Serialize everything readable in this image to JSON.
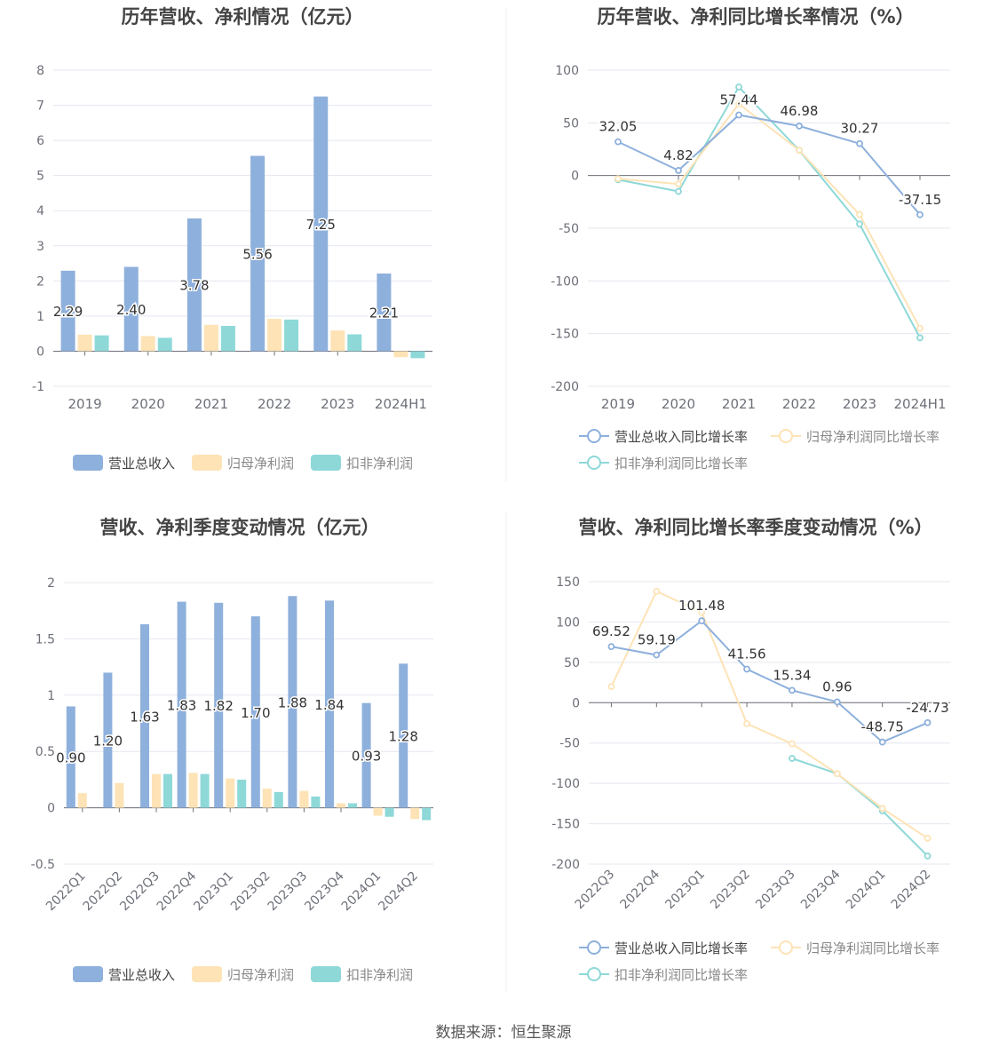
{
  "source_text": "数据来源：恒生聚源",
  "colors": {
    "revenue": "#8eb0dc",
    "net_profit": "#fde3b6",
    "deducted_profit": "#8ed8d8",
    "axis": "#6e7079",
    "grid": "#e4e7ef",
    "title": "#444444"
  },
  "chart_data": [
    {
      "type": "bar",
      "title": "历年营收、净利情况（亿元）",
      "categories": [
        "2019",
        "2020",
        "2021",
        "2022",
        "2023",
        "2024H1"
      ],
      "ylim": [
        -1,
        8
      ],
      "yticks": [
        -1,
        0,
        1,
        2,
        3,
        4,
        5,
        6,
        7,
        8
      ],
      "ytick_labels": [
        "-1",
        "0",
        "1",
        "2",
        "3",
        "4",
        "5",
        "6",
        "7",
        "8"
      ],
      "legend_position": "bottom",
      "grid": true,
      "series": [
        {
          "name": "营业总收入",
          "values": [
            2.29,
            2.4,
            3.78,
            5.56,
            7.25,
            2.21
          ],
          "labels": [
            "2.29",
            "2.40",
            "3.78",
            "5.56",
            "7.25",
            "2.21"
          ]
        },
        {
          "name": "归母净利润",
          "values": [
            0.47,
            0.43,
            0.75,
            0.92,
            0.59,
            -0.17
          ]
        },
        {
          "name": "扣非净利润",
          "values": [
            0.45,
            0.38,
            0.72,
            0.9,
            0.48,
            -0.2
          ]
        }
      ]
    },
    {
      "type": "line",
      "title": "历年营收、净利同比增长率情况（%）",
      "categories": [
        "2019",
        "2020",
        "2021",
        "2022",
        "2023",
        "2024H1"
      ],
      "ylim": [
        -200,
        100
      ],
      "yticks": [
        -200,
        -150,
        -100,
        -50,
        0,
        50,
        100
      ],
      "ytick_labels": [
        "-200",
        "-150",
        "-100",
        "-50",
        "0",
        "50",
        "100"
      ],
      "legend_position": "bottom",
      "grid": true,
      "series": [
        {
          "name": "营业总收入同比增长率",
          "values": [
            32.05,
            4.82,
            57.44,
            46.98,
            30.27,
            -37.15
          ],
          "labels": [
            "32.05",
            "4.82",
            "57.44",
            "46.98",
            "30.27",
            "-37.15"
          ]
        },
        {
          "name": "归母净利润同比增长率",
          "values": [
            -3,
            -8,
            68,
            24,
            -37,
            -145
          ]
        },
        {
          "name": "扣非净利润同比增长率",
          "values": [
            -4,
            -15,
            84,
            24,
            -46,
            -154
          ]
        }
      ]
    },
    {
      "type": "bar",
      "title": "营收、净利季度变动情况（亿元）",
      "categories": [
        "2022Q1",
        "2022Q2",
        "2022Q3",
        "2022Q4",
        "2023Q1",
        "2023Q2",
        "2023Q3",
        "2023Q4",
        "2024Q1",
        "2024Q2"
      ],
      "ylim": [
        -0.5,
        2
      ],
      "yticks": [
        -0.5,
        0,
        0.5,
        1,
        1.5,
        2
      ],
      "ytick_labels": [
        "-0.5",
        "0",
        "0.5",
        "1",
        "1.5",
        "2"
      ],
      "legend_position": "bottom",
      "grid": true,
      "series": [
        {
          "name": "营业总收入",
          "values": [
            0.9,
            1.2,
            1.63,
            1.83,
            1.82,
            1.7,
            1.88,
            1.84,
            0.93,
            1.28
          ],
          "labels": [
            "0.90",
            "1.20",
            "1.63",
            "1.83",
            "1.82",
            "1.70",
            "1.88",
            "1.84",
            "0.93",
            "1.28"
          ]
        },
        {
          "name": "归母净利润",
          "values": [
            0.13,
            0.22,
            0.3,
            0.31,
            0.26,
            0.17,
            0.15,
            0.04,
            -0.07,
            -0.1
          ]
        },
        {
          "name": "扣非净利润",
          "values": [
            null,
            null,
            0.3,
            0.3,
            0.25,
            0.14,
            0.1,
            0.04,
            -0.08,
            -0.11
          ]
        }
      ]
    },
    {
      "type": "line",
      "title": "营收、净利同比增长率季度变动情况（%）",
      "categories": [
        "2022Q3",
        "2022Q4",
        "2023Q1",
        "2023Q2",
        "2023Q3",
        "2023Q4",
        "2024Q1",
        "2024Q2"
      ],
      "ylim": [
        -200,
        150
      ],
      "yticks": [
        -200,
        -150,
        -100,
        -50,
        0,
        50,
        100,
        150
      ],
      "ytick_labels": [
        "-200",
        "-150",
        "-100",
        "-50",
        "0",
        "50",
        "100",
        "150"
      ],
      "legend_position": "bottom",
      "grid": true,
      "series": [
        {
          "name": "营业总收入同比增长率",
          "values": [
            69.52,
            59.19,
            101.48,
            41.56,
            15.34,
            0.96,
            -48.75,
            -24.73
          ],
          "labels": [
            "69.52",
            "59.19",
            "101.48",
            "41.56",
            "15.34",
            "0.96",
            "-48.75",
            "-24.73"
          ]
        },
        {
          "name": "归母净利润同比增长率",
          "values": [
            20,
            138,
            112,
            -26,
            -51,
            -88,
            -131,
            -168
          ]
        },
        {
          "name": "扣非净利润同比增长率",
          "values": [
            null,
            null,
            null,
            null,
            -69,
            -88,
            -134,
            -190
          ]
        }
      ]
    }
  ]
}
